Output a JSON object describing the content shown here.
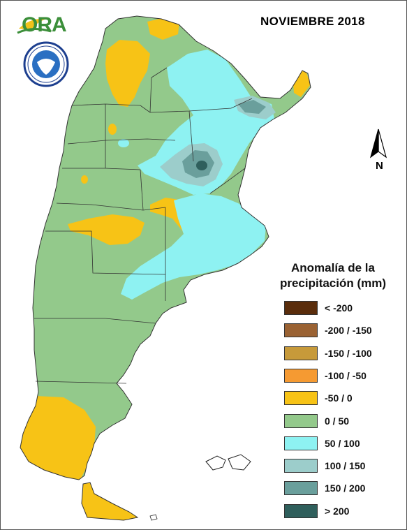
{
  "title": "NOVIEMBRE 2018",
  "logo": {
    "text": "ORA"
  },
  "legend": {
    "title_line1": "Anomalía de la",
    "title_line2": "precipitación (mm)",
    "items": [
      {
        "label": "< -200",
        "color": "#5a2d0c"
      },
      {
        "label": "-200 / -150",
        "color": "#9a6233"
      },
      {
        "label": "-150 / -100",
        "color": "#c79a3a"
      },
      {
        "label": "-100 / -50",
        "color": "#f59a32"
      },
      {
        "label": "-50 / 0",
        "color": "#f7c316"
      },
      {
        "label": "0 / 50",
        "color": "#93c98b"
      },
      {
        "label": "50 / 100",
        "color": "#8ef2f2"
      },
      {
        "label": "100 / 150",
        "color": "#9ccdcb"
      },
      {
        "label": "150 / 200",
        "color": "#6a9f9c"
      },
      {
        "label": "> 200",
        "color": "#2f5f5c"
      }
    ]
  },
  "north": {
    "label": "N",
    "icon": "north-arrow-icon"
  },
  "colors": {
    "base": "#93c98b",
    "dry": "#f7c316",
    "wet": "#8ef2f2",
    "wet2": "#9ccdcb",
    "wet3": "#6a9f9c",
    "wet4": "#2f5f5c"
  }
}
